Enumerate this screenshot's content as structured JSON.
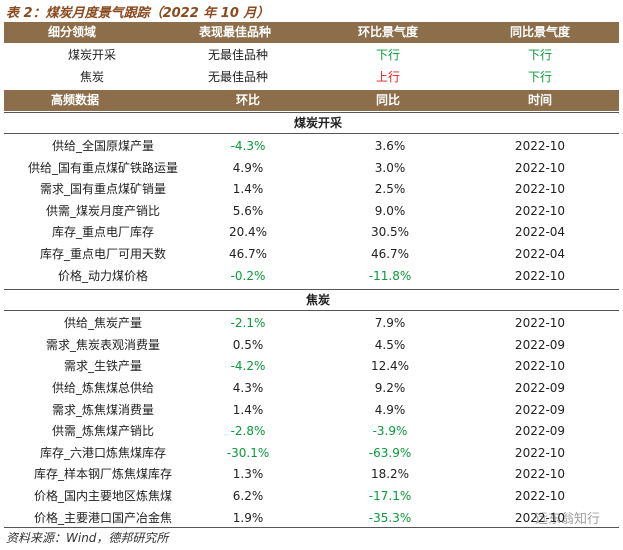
{
  "title": "表 2：煤炭月度景气跟踪（2022 年 10 月）",
  "summary": {
    "header": [
      "细分领域",
      "表现最佳品种",
      "环比景气度",
      "同比景气度"
    ],
    "rows": [
      [
        "煤炭开采",
        "无最佳品种",
        "下行",
        "下行"
      ],
      [
        "焦炭",
        "无最佳品种",
        "上行",
        "下行"
      ]
    ]
  },
  "detail": {
    "header": [
      "高频数据",
      "环比",
      "同比",
      "时间"
    ],
    "sections": [
      {
        "name": "煤炭开采",
        "rows": [
          [
            "供给_全国原煤产量",
            "-4.3%",
            "3.6%",
            "2022-10"
          ],
          [
            "供给_国有重点煤矿铁路运量",
            "4.9%",
            "3.0%",
            "2022-10"
          ],
          [
            "需求_国有重点煤矿销量",
            "1.4%",
            "2.5%",
            "2022-10"
          ],
          [
            "供需_煤炭月度产销比",
            "5.6%",
            "9.0%",
            "2022-10"
          ],
          [
            "库存_重点电厂库存",
            "20.4%",
            "30.5%",
            "2022-04"
          ],
          [
            "库存_重点电厂可用天数",
            "46.7%",
            "46.7%",
            "2022-04"
          ],
          [
            "价格_动力煤价格",
            "-0.2%",
            "-11.8%",
            "2022-10"
          ]
        ]
      },
      {
        "name": "焦炭",
        "rows": [
          [
            "供给_焦炭产量",
            "-2.1%",
            "7.9%",
            "2022-10"
          ],
          [
            "需求_焦炭表观消费量",
            "0.5%",
            "4.5%",
            "2022-09"
          ],
          [
            "需求_生铁产量",
            "-4.2%",
            "12.4%",
            "2022-10"
          ],
          [
            "供给_炼焦煤总供给",
            "4.3%",
            "9.2%",
            "2022-09"
          ],
          [
            "需求_炼焦煤消费量",
            "1.4%",
            "4.9%",
            "2022-09"
          ],
          [
            "供需_炼焦煤产销比",
            "-2.8%",
            "-3.9%",
            "2022-09"
          ],
          [
            "库存_六港口炼焦煤库存",
            "-30.1%",
            "-63.9%",
            "2022-10"
          ],
          [
            "库存_样本钢厂炼焦煤库存",
            "1.3%",
            "18.2%",
            "2022-10"
          ],
          [
            "价格_国内主要地区炼焦煤",
            "6.2%",
            "-17.1%",
            "2022-10"
          ],
          [
            "价格_主要港口国产冶金焦",
            "1.9%",
            "-35.3%",
            "2022-10"
          ]
        ]
      }
    ]
  },
  "source": "资料来源：Wind，德邦研究所",
  "watermark": "远东翁知行"
}
